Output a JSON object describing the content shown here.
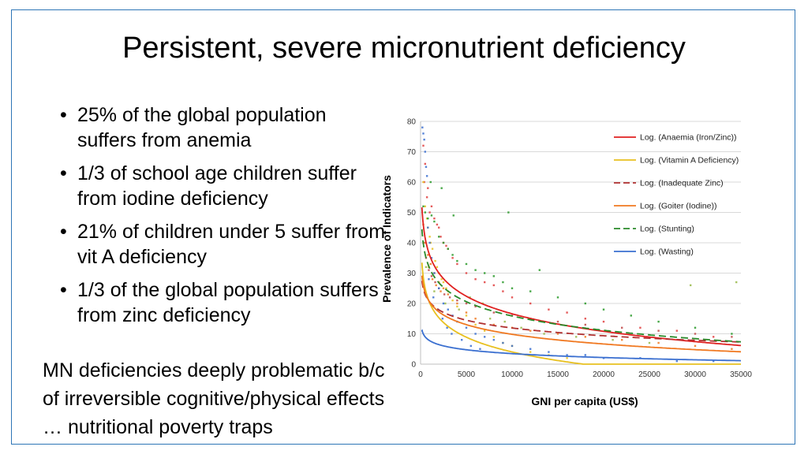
{
  "slide": {
    "title": "Persistent, severe micronutrient deficiency",
    "bullets": [
      "25% of the global population suffers from anemia",
      "1/3 of school age children suffer from iodine deficiency",
      "21% of children under 5 suffer from vit A deficiency",
      "1/3 of the global population suffers from zinc deficiency"
    ],
    "note": "MN deficiencies deeply problematic b/c of irreversible cognitive/physical effects … nutritional poverty traps"
  },
  "chart_data": {
    "type": "scatter",
    "xlabel": "GNI per capita (US$)",
    "ylabel": "Prevalence of Indicators",
    "xlim": [
      0,
      35000
    ],
    "ylim": [
      0,
      80
    ],
    "xticks": [
      0,
      5000,
      10000,
      15000,
      20000,
      25000,
      30000,
      35000
    ],
    "yticks": [
      0,
      10,
      20,
      30,
      40,
      50,
      60,
      70,
      80
    ],
    "grid": "horizontal",
    "legend_position": "top-right",
    "trendlines": [
      {
        "name": "Log. (Anaemia (Iron/Zinc))",
        "color": "#e02020",
        "dash": "solid",
        "type": "log",
        "a": 93.5,
        "b": -8.35
      },
      {
        "name": "Log. (Vitamin A Deficiency)",
        "color": "#e8c020",
        "dash": "solid",
        "type": "log",
        "a": 68.5,
        "b": -7.0
      },
      {
        "name": "Log. (Inadequate Zinc)",
        "color": "#b03030",
        "dash": "dashed",
        "type": "log",
        "a": 46.0,
        "b": -3.7
      },
      {
        "name": "Log. (Goiter (Iodine))",
        "color": "#f07820",
        "dash": "solid",
        "type": "log",
        "a": 52.2,
        "b": -4.6
      },
      {
        "name": "Log. (Stunting)",
        "color": "#2a8a2a",
        "dash": "dashed",
        "type": "log",
        "a": 78.5,
        "b": -6.8
      },
      {
        "name": "Log. (Wasting)",
        "color": "#3a6fd0",
        "dash": "solid",
        "type": "log",
        "a": 20.5,
        "b": -1.85
      }
    ],
    "scatter_series": [
      {
        "color": "#e04040",
        "points": [
          [
            300,
            72
          ],
          [
            500,
            66
          ],
          [
            800,
            58
          ],
          [
            1200,
            52
          ],
          [
            1500,
            48
          ],
          [
            2000,
            45
          ],
          [
            2500,
            40
          ],
          [
            3000,
            38
          ],
          [
            3500,
            35
          ],
          [
            4000,
            33
          ],
          [
            5000,
            30
          ],
          [
            6000,
            28
          ],
          [
            7000,
            27
          ],
          [
            8000,
            26
          ],
          [
            9000,
            24
          ],
          [
            10000,
            22
          ],
          [
            12000,
            20
          ],
          [
            14000,
            18
          ],
          [
            16000,
            17
          ],
          [
            18000,
            15
          ],
          [
            20000,
            14
          ],
          [
            24000,
            12
          ],
          [
            28000,
            11
          ],
          [
            32000,
            9
          ],
          [
            400,
            60
          ],
          [
            700,
            55
          ],
          [
            1000,
            50
          ],
          [
            1800,
            46
          ],
          [
            2200,
            42
          ],
          [
            2800,
            39
          ]
        ]
      },
      {
        "color": "#e8c020",
        "points": [
          [
            300,
            60
          ],
          [
            500,
            52
          ],
          [
            700,
            48
          ],
          [
            1000,
            42
          ],
          [
            1300,
            38
          ],
          [
            1600,
            34
          ],
          [
            2000,
            30
          ],
          [
            2500,
            27
          ],
          [
            3000,
            24
          ],
          [
            3500,
            21
          ],
          [
            4000,
            19
          ],
          [
            5000,
            16
          ],
          [
            6000,
            13
          ],
          [
            7000,
            11
          ],
          [
            8000,
            9
          ],
          [
            9000,
            7
          ],
          [
            10000,
            6
          ],
          [
            12000,
            4
          ],
          [
            14000,
            3
          ],
          [
            16000,
            2
          ],
          [
            800,
            45
          ],
          [
            1100,
            40
          ],
          [
            1800,
            32
          ],
          [
            2300,
            28
          ],
          [
            2800,
            25
          ]
        ]
      },
      {
        "color": "#c04848",
        "points": [
          [
            300,
            40
          ],
          [
            600,
            35
          ],
          [
            900,
            31
          ],
          [
            1200,
            29
          ],
          [
            1600,
            27
          ],
          [
            2000,
            25
          ],
          [
            2600,
            23
          ],
          [
            3200,
            22
          ],
          [
            4000,
            21
          ],
          [
            5000,
            20
          ],
          [
            6000,
            19
          ],
          [
            8000,
            17
          ],
          [
            10000,
            16
          ],
          [
            12000,
            15
          ],
          [
            15000,
            14
          ],
          [
            18000,
            13
          ],
          [
            22000,
            12
          ],
          [
            26000,
            11
          ],
          [
            30000,
            10
          ],
          [
            34000,
            9
          ]
        ]
      },
      {
        "color": "#f07820",
        "points": [
          [
            300,
            46
          ],
          [
            500,
            40
          ],
          [
            800,
            36
          ],
          [
            1100,
            33
          ],
          [
            1500,
            30
          ],
          [
            2000,
            27
          ],
          [
            2500,
            25
          ],
          [
            3000,
            23
          ],
          [
            4000,
            20
          ],
          [
            5000,
            17
          ],
          [
            6000,
            15
          ],
          [
            8000,
            13
          ],
          [
            10000,
            12
          ],
          [
            12000,
            11
          ],
          [
            15000,
            10
          ],
          [
            18000,
            9
          ],
          [
            22000,
            8
          ],
          [
            26000,
            7
          ],
          [
            30000,
            6
          ],
          [
            34000,
            5
          ],
          [
            900,
            32
          ],
          [
            1300,
            28
          ],
          [
            1700,
            26
          ],
          [
            2200,
            24
          ]
        ]
      },
      {
        "color": "#2a9a2a",
        "points": [
          [
            300,
            52
          ],
          [
            500,
            50
          ],
          [
            800,
            48
          ],
          [
            1200,
            49
          ],
          [
            1500,
            47
          ],
          [
            2000,
            42
          ],
          [
            2500,
            40
          ],
          [
            3000,
            38
          ],
          [
            3500,
            36
          ],
          [
            4000,
            34
          ],
          [
            5000,
            33
          ],
          [
            6000,
            31
          ],
          [
            7000,
            30
          ],
          [
            8000,
            29
          ],
          [
            9000,
            27
          ],
          [
            10000,
            25
          ],
          [
            12000,
            24
          ],
          [
            13000,
            31
          ],
          [
            15000,
            22
          ],
          [
            18000,
            20
          ],
          [
            20000,
            18
          ],
          [
            23000,
            16
          ],
          [
            26000,
            14
          ],
          [
            30000,
            12
          ],
          [
            34000,
            10
          ],
          [
            1100,
            60
          ],
          [
            2300,
            58
          ],
          [
            3600,
            49
          ],
          [
            9600,
            50
          ]
        ]
      },
      {
        "color": "#3a6fd0",
        "points": [
          [
            200,
            78
          ],
          [
            300,
            76
          ],
          [
            400,
            74
          ],
          [
            500,
            70
          ],
          [
            600,
            65
          ],
          [
            700,
            62
          ],
          [
            800,
            45
          ],
          [
            1000,
            40
          ],
          [
            1200,
            35
          ],
          [
            1500,
            30
          ],
          [
            2000,
            25
          ],
          [
            2500,
            20
          ],
          [
            3000,
            18
          ],
          [
            3500,
            16
          ],
          [
            4000,
            14
          ],
          [
            5000,
            12
          ],
          [
            6000,
            10
          ],
          [
            7000,
            9
          ],
          [
            8000,
            8
          ],
          [
            9000,
            7
          ],
          [
            10000,
            6
          ],
          [
            12000,
            5
          ],
          [
            14000,
            4
          ],
          [
            16000,
            3
          ],
          [
            18000,
            3
          ],
          [
            20000,
            2
          ],
          [
            24000,
            2
          ],
          [
            28000,
            1
          ],
          [
            32000,
            1
          ],
          [
            900,
            28
          ],
          [
            1400,
            22
          ],
          [
            1900,
            18
          ],
          [
            2400,
            15
          ],
          [
            2900,
            12
          ],
          [
            3400,
            10
          ],
          [
            4500,
            8
          ],
          [
            5500,
            6
          ],
          [
            6500,
            5
          ]
        ]
      },
      {
        "color": "#98b848",
        "points": [
          [
            600,
            32
          ],
          [
            1500,
            24
          ],
          [
            2700,
            20
          ],
          [
            4200,
            18
          ],
          [
            5400,
            22
          ],
          [
            6800,
            20
          ],
          [
            7600,
            15
          ],
          [
            9200,
            14
          ],
          [
            11000,
            12
          ],
          [
            13500,
            10
          ],
          [
            17000,
            9
          ],
          [
            21000,
            8
          ],
          [
            25000,
            7
          ],
          [
            29500,
            26
          ],
          [
            34500,
            27
          ]
        ]
      }
    ]
  }
}
